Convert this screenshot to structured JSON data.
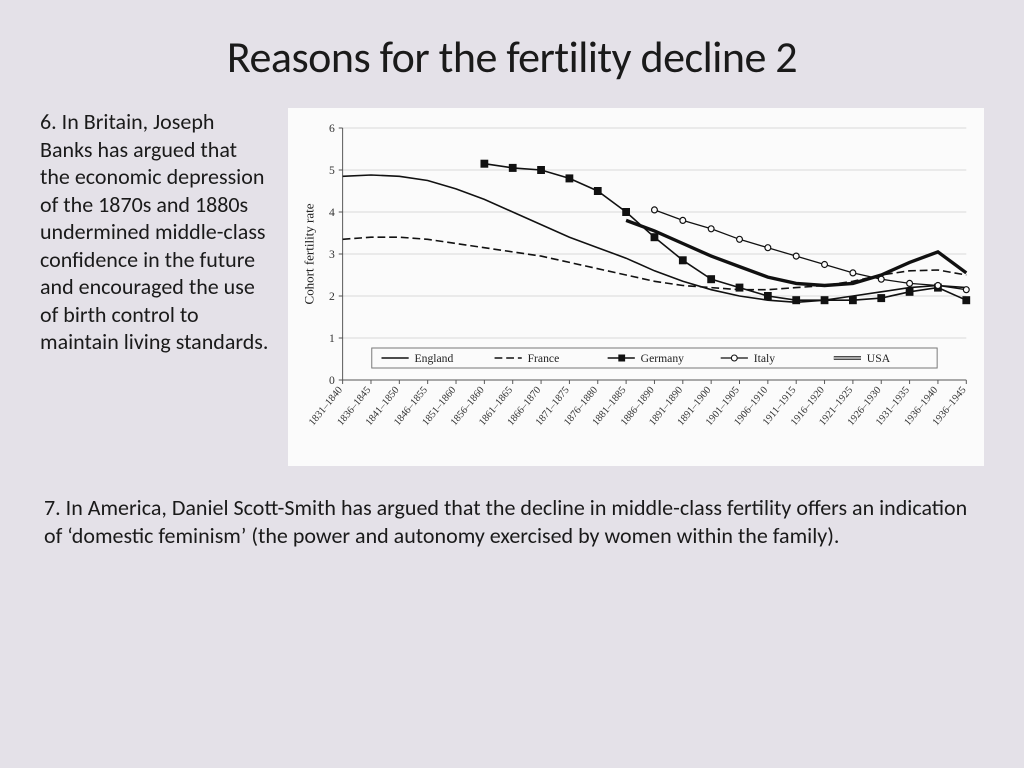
{
  "title": "Reasons for the fertility decline 2",
  "para6": "6. In Britain, Joseph Banks has argued that the economic depression of the 1870s and 1880s undermined middle-class confidence in the future and encouraged the use of birth control to maintain living standards.",
  "para7": "7. In America, Daniel Scott-Smith has argued that the decline in middle-class fertility offers an indication of ‘domestic feminism’ (the power and autonomy exercised by women within the family).",
  "chart": {
    "type": "line",
    "ylabel": "Cohort fertility rate",
    "ylim": [
      0,
      6
    ],
    "ytick_step": 1,
    "background_color": "#fbfbfb",
    "grid_color": "#d8d8d8",
    "axis_color": "#555555",
    "text_color": "#222222",
    "axis_fontsize": 12,
    "xtick_fontsize": 10.5,
    "xtick_rotation": -50,
    "legend": {
      "position": "bottom-inside",
      "border_color": "#777777",
      "items": [
        "England",
        "France",
        "Germany",
        "Italy",
        "USA"
      ]
    },
    "x_categories": [
      "1831–1840",
      "1836–1845",
      "1841–1850",
      "1846–1855",
      "1851–1860",
      "1856–1860",
      "1861–1865",
      "1866–1870",
      "1871–1875",
      "1876–1880",
      "1881–1885",
      "1886–1890",
      "1891–1890",
      "1891–1900",
      "1901–1905",
      "1906–1910",
      "1911–1915",
      "1916–1920",
      "1921–1925",
      "1926–1930",
      "1931–1935",
      "1936–1940",
      "1936–1945"
    ],
    "series": [
      {
        "name": "England",
        "color": "#111111",
        "line_width": 1.6,
        "dash": "none",
        "marker": "none",
        "y": [
          4.85,
          4.88,
          4.85,
          4.75,
          4.55,
          4.3,
          4.0,
          3.7,
          3.4,
          3.15,
          2.9,
          2.6,
          2.35,
          2.15,
          2.0,
          1.9,
          1.85,
          1.9,
          2.0,
          2.1,
          2.2,
          2.25,
          2.2
        ]
      },
      {
        "name": "France",
        "color": "#111111",
        "line_width": 1.6,
        "dash": "8,4",
        "marker": "none",
        "y": [
          3.35,
          3.4,
          3.4,
          3.35,
          3.25,
          3.15,
          3.05,
          2.95,
          2.8,
          2.65,
          2.5,
          2.35,
          2.25,
          2.2,
          2.15,
          2.15,
          2.2,
          2.25,
          2.35,
          2.5,
          2.6,
          2.62,
          2.5
        ]
      },
      {
        "name": "Germany",
        "color": "#111111",
        "line_width": 1.6,
        "dash": "none",
        "marker": "square",
        "marker_size": 8,
        "y": [
          null,
          null,
          null,
          null,
          null,
          5.15,
          5.05,
          5.0,
          4.8,
          4.5,
          4.0,
          3.4,
          2.85,
          2.4,
          2.2,
          2.0,
          1.9,
          1.9,
          1.9,
          1.95,
          2.1,
          2.2,
          1.9
        ]
      },
      {
        "name": "Italy",
        "color": "#111111",
        "line_width": 1.3,
        "dash": "none",
        "marker": "circle-open",
        "marker_size": 6,
        "y": [
          null,
          null,
          null,
          null,
          null,
          null,
          null,
          null,
          null,
          null,
          null,
          4.05,
          3.8,
          3.6,
          3.35,
          3.15,
          2.95,
          2.75,
          2.55,
          2.4,
          2.3,
          2.25,
          2.15
        ]
      },
      {
        "name": "USA",
        "color": "#111111",
        "line_width": 1.2,
        "dash": "none",
        "marker": "none",
        "style": "double",
        "y": [
          null,
          null,
          null,
          null,
          null,
          null,
          null,
          null,
          null,
          null,
          3.8,
          3.55,
          3.25,
          2.95,
          2.7,
          2.45,
          2.3,
          2.25,
          2.3,
          2.5,
          2.8,
          3.05,
          2.55
        ]
      }
    ]
  }
}
